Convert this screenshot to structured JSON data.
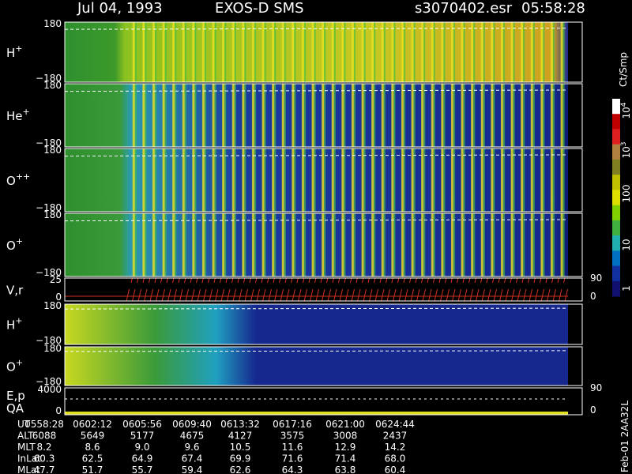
{
  "header": {
    "date": "Jul 04, 1993",
    "instrument": "EXOS-D SMS",
    "file": "s3070402.esr",
    "time": "05:58:28"
  },
  "panels": [
    {
      "label": "H",
      "sup": "+",
      "ticks": [
        "180",
        "−180"
      ]
    },
    {
      "label": "He",
      "sup": "+",
      "ticks": [
        "180",
        "−180"
      ]
    },
    {
      "label": "O",
      "sup": "++",
      "ticks": [
        "180",
        "−180"
      ]
    },
    {
      "label": "O",
      "sup": "+",
      "ticks": [
        "180",
        "−180"
      ]
    },
    {
      "label": "V,r",
      "ticks": [
        "25",
        "0"
      ],
      "right_ticks": [
        "90",
        "0"
      ]
    },
    {
      "label": "H",
      "sup": "+",
      "ticks": [
        "180",
        "−180"
      ]
    },
    {
      "label": "O",
      "sup": "+",
      "ticks": [
        "180",
        "−180"
      ]
    },
    {
      "label": "E,p",
      "label2": "QA",
      "ticks": [
        "4000",
        "0"
      ],
      "right_ticks": [
        "90",
        "0"
      ]
    }
  ],
  "colorbar": {
    "unit": "Ct/Smp",
    "ticks": [
      {
        "base": "10",
        "exp": "4"
      },
      {
        "base": "10",
        "exp": "3"
      },
      {
        "base": "100"
      },
      {
        "base": "10"
      },
      {
        "base": "1"
      }
    ]
  },
  "table": {
    "rows": [
      [
        "UT",
        "0558:28",
        "0602:12",
        "0605:56",
        "0609:40",
        "0613:32",
        "0617:16",
        "0621:00",
        "0624:44"
      ],
      [
        "ALT",
        "6088",
        "5649",
        "5177",
        "4675",
        "4127",
        "3575",
        "3008",
        "2437"
      ],
      [
        "MLT",
        "8.2",
        "8.6",
        "9.0",
        "9.6",
        "10.5",
        "11.6",
        "12.9",
        "14.2"
      ],
      [
        "InLat",
        "60.3",
        "62.5",
        "64.9",
        "67.4",
        "69.9",
        "71.6",
        "71.4",
        "68.0"
      ],
      [
        "MLat",
        "47.7",
        "51.7",
        "55.7",
        "59.4",
        "62.6",
        "64.3",
        "63.8",
        "60.4"
      ]
    ]
  },
  "footer_id": "Feb-01 2AA32L"
}
